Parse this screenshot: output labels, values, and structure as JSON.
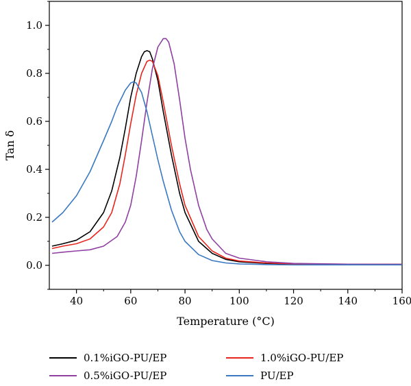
{
  "chart_data": {
    "type": "line",
    "title": "",
    "xlabel": "Temperature (°C)",
    "ylabel": "Tan δ",
    "xlim": [
      30,
      160
    ],
    "ylim": [
      -0.1,
      1.1
    ],
    "xticks": [
      40,
      60,
      80,
      100,
      120,
      140,
      160
    ],
    "yticks": [
      0.0,
      0.2,
      0.4,
      0.6,
      0.8,
      1.0
    ],
    "xtick_labels": [
      "40",
      "60",
      "80",
      "100",
      "120",
      "140",
      "160"
    ],
    "ytick_labels": [
      "0.0",
      "0.2",
      "0.4",
      "0.6",
      "0.8",
      "1.0"
    ],
    "grid": false,
    "legend_position": "bottom",
    "series": [
      {
        "name": "0.1%iGO-PU/EP",
        "color": "#000000",
        "x": [
          31,
          35,
          40,
          45,
          50,
          53,
          56,
          58,
          60,
          62,
          64,
          65,
          66,
          67,
          68,
          70,
          72,
          75,
          78,
          80,
          85,
          90,
          95,
          100,
          110,
          120,
          140,
          160
        ],
        "y": [
          0.08,
          0.09,
          0.105,
          0.14,
          0.22,
          0.31,
          0.45,
          0.57,
          0.7,
          0.8,
          0.87,
          0.89,
          0.895,
          0.89,
          0.86,
          0.77,
          0.64,
          0.46,
          0.3,
          0.22,
          0.1,
          0.05,
          0.025,
          0.015,
          0.008,
          0.005,
          0.004,
          0.004
        ]
      },
      {
        "name": "1.0%iGO-PU/EP",
        "color": "#e8241b",
        "x": [
          31,
          35,
          40,
          45,
          50,
          53,
          56,
          58,
          60,
          62,
          64,
          66,
          67,
          68,
          70,
          72,
          75,
          78,
          80,
          85,
          90,
          95,
          100,
          110,
          120,
          140,
          160
        ],
        "y": [
          0.07,
          0.08,
          0.09,
          0.11,
          0.16,
          0.22,
          0.34,
          0.46,
          0.59,
          0.71,
          0.8,
          0.85,
          0.855,
          0.85,
          0.79,
          0.68,
          0.5,
          0.34,
          0.25,
          0.12,
          0.06,
          0.03,
          0.018,
          0.01,
          0.006,
          0.005,
          0.004
        ]
      },
      {
        "name": "0.5%iGO-PU/EP",
        "color": "#8f3fa0",
        "x": [
          31,
          35,
          40,
          45,
          50,
          55,
          58,
          60,
          62,
          64,
          66,
          68,
          70,
          72,
          73,
          74,
          76,
          78,
          80,
          82,
          85,
          88,
          90,
          95,
          100,
          110,
          120,
          140,
          160
        ],
        "y": [
          0.05,
          0.055,
          0.06,
          0.065,
          0.08,
          0.12,
          0.18,
          0.25,
          0.37,
          0.52,
          0.68,
          0.82,
          0.91,
          0.945,
          0.945,
          0.93,
          0.84,
          0.69,
          0.53,
          0.4,
          0.25,
          0.15,
          0.11,
          0.05,
          0.03,
          0.015,
          0.008,
          0.005,
          0.004
        ]
      },
      {
        "name": "PU/EP",
        "color": "#3a78c2",
        "x": [
          31,
          35,
          40,
          45,
          50,
          53,
          55,
          58,
          60,
          61,
          62,
          64,
          66,
          68,
          70,
          72,
          75,
          78,
          80,
          85,
          90,
          95,
          100,
          110,
          120,
          140,
          160
        ],
        "y": [
          0.18,
          0.22,
          0.29,
          0.39,
          0.52,
          0.6,
          0.66,
          0.73,
          0.76,
          0.765,
          0.76,
          0.72,
          0.64,
          0.54,
          0.44,
          0.35,
          0.23,
          0.14,
          0.1,
          0.045,
          0.02,
          0.01,
          0.006,
          0.003,
          0.002,
          0.002,
          0.002
        ]
      }
    ]
  }
}
